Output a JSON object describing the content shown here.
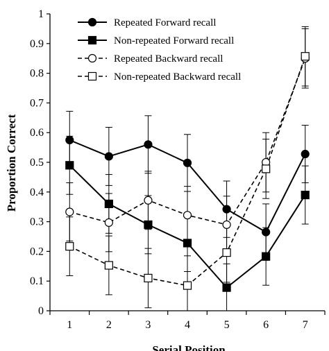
{
  "chart_data": {
    "type": "line",
    "title": "",
    "xlabel": "Serial Position",
    "ylabel": "Proportion Correct",
    "x": [
      1,
      2,
      3,
      4,
      5,
      6,
      7
    ],
    "xticks": [
      "1",
      "2",
      "3",
      "4",
      "5",
      "6",
      "7"
    ],
    "xlim": [
      0.5,
      7.5
    ],
    "ylim": [
      0,
      1
    ],
    "yticks": [
      "0",
      "0.1",
      "0.2",
      "0.3",
      "0.4",
      "0.5",
      "0.6",
      "0.7",
      "0.8",
      "0.9",
      "1"
    ],
    "grid": false,
    "legend_position": "top-center",
    "series": [
      {
        "name": "Repeated Forward recall",
        "marker": "circle",
        "filled": true,
        "dashed": false,
        "values": [
          0.575,
          0.52,
          0.56,
          0.498,
          0.342,
          0.265,
          0.528
        ],
        "err": [
          0.097,
          0.098,
          0.097,
          0.096,
          0.095,
          0.095,
          0.097
        ]
      },
      {
        "name": "Non-repeated Forward recall",
        "marker": "square",
        "filled": true,
        "dashed": false,
        "values": [
          0.49,
          0.36,
          0.29,
          0.228,
          0.078,
          0.183,
          0.39
        ],
        "err": [
          0.098,
          0.099,
          0.098,
          0.096,
          0.08,
          0.097,
          0.098
        ]
      },
      {
        "name": "Repeated Backward recall",
        "marker": "circle",
        "filled": false,
        "dashed": true,
        "values": [
          0.333,
          0.297,
          0.372,
          0.322,
          0.29,
          0.5,
          0.85
        ],
        "err": [
          0.098,
          0.098,
          0.098,
          0.097,
          0.096,
          0.1,
          0.1
        ]
      },
      {
        "name": "Non-repeated Backward recall",
        "marker": "square",
        "filled": false,
        "dashed": true,
        "values": [
          0.217,
          0.153,
          0.11,
          0.085,
          0.196,
          0.478,
          0.857
        ],
        "err": [
          0.099,
          0.099,
          0.1,
          0.1,
          0.1,
          0.1,
          0.1
        ]
      }
    ]
  }
}
